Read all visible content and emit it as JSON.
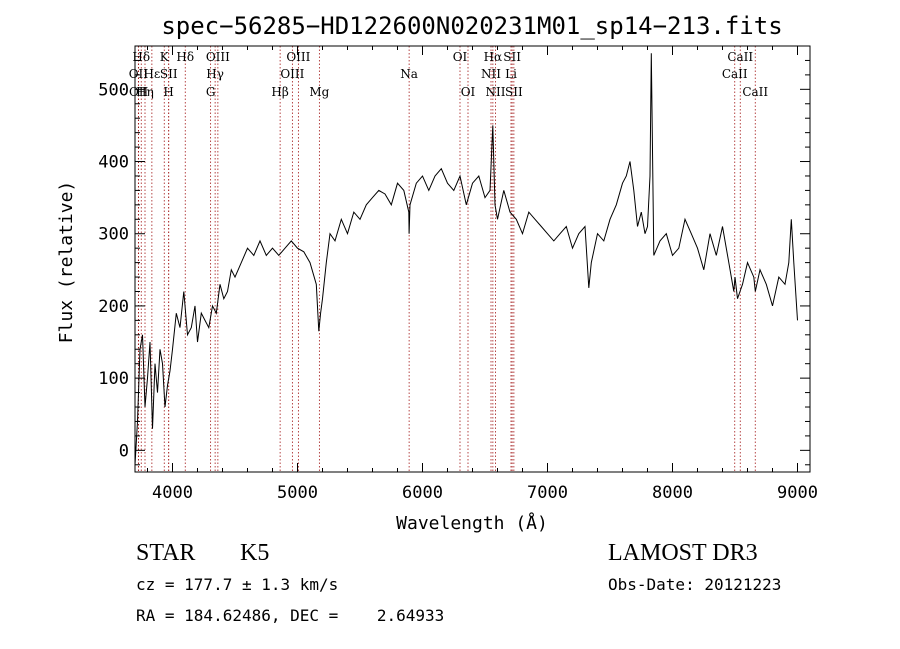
{
  "chart_data": {
    "type": "line",
    "title": "spec−56285−HD122600N020231M01_sp14−213.fits",
    "xlabel": "Wavelength (Å)",
    "ylabel": "Flux (relative)",
    "xlim": [
      3700,
      9100
    ],
    "ylim": [
      -30,
      560
    ],
    "x_ticks": [
      4000,
      5000,
      6000,
      7000,
      8000,
      9000
    ],
    "y_ticks": [
      0,
      100,
      200,
      300,
      400,
      500
    ],
    "series": [
      {
        "color": "#000000",
        "x": [
          3700,
          3720,
          3740,
          3760,
          3780,
          3800,
          3820,
          3840,
          3860,
          3880,
          3900,
          3920,
          3940,
          3960,
          3980,
          4000,
          4030,
          4060,
          4090,
          4120,
          4150,
          4180,
          4200,
          4230,
          4260,
          4290,
          4320,
          4350,
          4380,
          4410,
          4440,
          4470,
          4500,
          4550,
          4600,
          4650,
          4700,
          4750,
          4800,
          4850,
          4900,
          4950,
          5000,
          5050,
          5100,
          5150,
          5170,
          5185,
          5200,
          5230,
          5260,
          5300,
          5350,
          5400,
          5450,
          5500,
          5550,
          5600,
          5650,
          5700,
          5750,
          5800,
          5850,
          5890,
          5893,
          5900,
          5950,
          6000,
          6050,
          6100,
          6150,
          6200,
          6250,
          6300,
          6350,
          6400,
          6450,
          6500,
          6540,
          6562,
          6580,
          6600,
          6650,
          6700,
          6750,
          6800,
          6850,
          6900,
          6950,
          7000,
          7050,
          7100,
          7150,
          7200,
          7250,
          7300,
          7330,
          7350,
          7400,
          7450,
          7500,
          7550,
          7600,
          7630,
          7660,
          7690,
          7720,
          7750,
          7780,
          7800,
          7820,
          7830,
          7850,
          7900,
          7950,
          8000,
          8050,
          8100,
          8150,
          8200,
          8250,
          8300,
          8350,
          8400,
          8450,
          8490,
          8500,
          8520,
          8540,
          8560,
          8600,
          8650,
          8662,
          8700,
          8750,
          8800,
          8850,
          8900,
          8930,
          8950,
          8970,
          9000
        ],
        "values": [
          -20,
          40,
          140,
          160,
          60,
          100,
          150,
          30,
          120,
          80,
          140,
          120,
          60,
          90,
          110,
          140,
          190,
          170,
          220,
          160,
          170,
          200,
          150,
          190,
          180,
          170,
          200,
          190,
          230,
          210,
          220,
          250,
          240,
          260,
          280,
          270,
          290,
          270,
          280,
          270,
          280,
          290,
          280,
          275,
          260,
          230,
          165,
          190,
          210,
          260,
          300,
          290,
          320,
          300,
          330,
          320,
          340,
          350,
          360,
          355,
          340,
          370,
          360,
          330,
          300,
          340,
          370,
          380,
          360,
          380,
          390,
          370,
          360,
          380,
          340,
          370,
          380,
          350,
          360,
          450,
          340,
          320,
          360,
          330,
          320,
          300,
          330,
          320,
          310,
          300,
          290,
          300,
          310,
          280,
          300,
          310,
          225,
          260,
          300,
          290,
          320,
          340,
          370,
          380,
          400,
          360,
          310,
          330,
          300,
          310,
          380,
          550,
          270,
          290,
          300,
          270,
          280,
          320,
          300,
          280,
          250,
          300,
          270,
          310,
          260,
          220,
          240,
          210,
          220,
          230,
          260,
          240,
          220,
          250,
          230,
          200,
          240,
          230,
          260,
          320,
          260,
          180
        ]
      }
    ],
    "spectral_lines": [
      {
        "label": "Hδ",
        "x": 3750,
        "row": 1
      },
      {
        "label": "OII",
        "x": 3727,
        "row": 2
      },
      {
        "label": "OII",
        "x": 3729,
        "row": 3
      },
      {
        "label": "Hε",
        "x": 3835,
        "row": 2
      },
      {
        "label": "Hη",
        "x": 3780,
        "row": 3
      },
      {
        "label": "K",
        "x": 3934,
        "row": 1
      },
      {
        "label": "SII",
        "x": 3970,
        "row": 2
      },
      {
        "label": "H",
        "x": 3969,
        "row": 3
      },
      {
        "label": "Hδ",
        "x": 4102,
        "row": 1
      },
      {
        "label": "OIII",
        "x": 4363,
        "row": 1
      },
      {
        "label": "Hγ",
        "x": 4341,
        "row": 2
      },
      {
        "label": "G",
        "x": 4305,
        "row": 3
      },
      {
        "label": "Hβ",
        "x": 4861,
        "row": 3
      },
      {
        "label": "OIII",
        "x": 5007,
        "row": 1
      },
      {
        "label": "OIII",
        "x": 4959,
        "row": 2
      },
      {
        "label": "Mg",
        "x": 5175,
        "row": 3
      },
      {
        "label": "Na",
        "x": 5893,
        "row": 2
      },
      {
        "label": "OI",
        "x": 6300,
        "row": 1
      },
      {
        "label": "OI",
        "x": 6364,
        "row": 3
      },
      {
        "label": "Hα",
        "x": 6563,
        "row": 1
      },
      {
        "label": "NII",
        "x": 6548,
        "row": 2
      },
      {
        "label": "NII",
        "x": 6584,
        "row": 3
      },
      {
        "label": "SII",
        "x": 6717,
        "row": 1
      },
      {
        "label": "Li",
        "x": 6708,
        "row": 2
      },
      {
        "label": "SII",
        "x": 6731,
        "row": 3
      },
      {
        "label": "CaII",
        "x": 8542,
        "row": 1
      },
      {
        "label": "CaII",
        "x": 8498,
        "row": 2
      },
      {
        "label": "CaII",
        "x": 8662,
        "row": 3
      }
    ]
  },
  "info": {
    "object_class": "STAR",
    "subclass": "K5",
    "survey": "LAMOST DR3",
    "velocity": "cz = 177.7 ± 1.3 km/s",
    "obs_date": "Obs-Date: 20121223",
    "coords": "RA = 184.62486, DEC =    2.64933"
  }
}
